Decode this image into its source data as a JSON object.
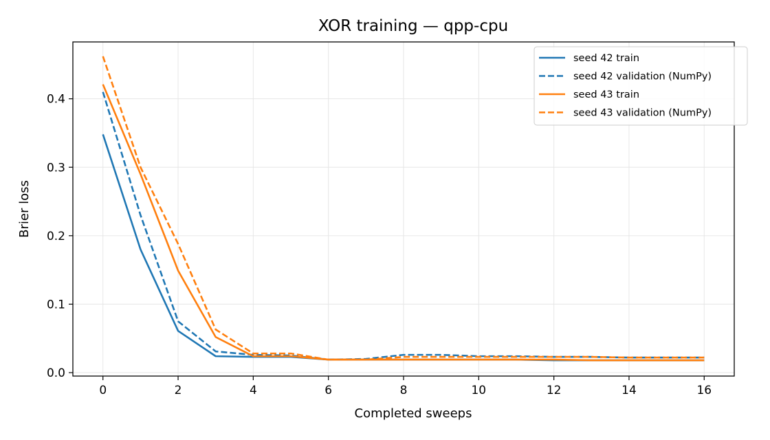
{
  "chart_data": {
    "type": "line",
    "title": "XOR training — qpp-cpu",
    "xlabel": "Completed sweeps",
    "ylabel": "Brier loss",
    "xlim": [
      -0.8,
      16.8
    ],
    "ylim": [
      -0.005,
      0.483
    ],
    "xticks": [
      0,
      2,
      4,
      6,
      8,
      10,
      12,
      14,
      16
    ],
    "yticks": [
      0.0,
      0.1,
      0.2,
      0.3,
      0.4
    ],
    "xtick_labels": [
      "0",
      "2",
      "4",
      "6",
      "8",
      "10",
      "12",
      "14",
      "16"
    ],
    "ytick_labels": [
      "0.0",
      "0.1",
      "0.2",
      "0.3",
      "0.4"
    ],
    "grid": true,
    "legend_position": "top-right",
    "x": [
      0,
      1,
      2,
      3,
      4,
      5,
      6,
      7,
      8,
      9,
      10,
      11,
      12,
      13,
      14,
      15,
      16
    ],
    "series": [
      {
        "name": "seed 42 train",
        "color": "#1f77b4",
        "dash": "solid",
        "values": [
          0.348,
          0.18,
          0.061,
          0.024,
          0.023,
          0.023,
          0.019,
          0.019,
          0.019,
          0.019,
          0.019,
          0.019,
          0.018,
          0.018,
          0.018,
          0.018,
          0.018
        ]
      },
      {
        "name": "seed 42 validation (NumPy)",
        "color": "#1f77b4",
        "dash": "dashed",
        "values": [
          0.41,
          0.23,
          0.075,
          0.031,
          0.026,
          0.025,
          0.019,
          0.02,
          0.026,
          0.026,
          0.024,
          0.024,
          0.023,
          0.023,
          0.022,
          0.022,
          0.022
        ]
      },
      {
        "name": "seed 43 train",
        "color": "#ff7f0e",
        "dash": "solid",
        "values": [
          0.421,
          0.29,
          0.149,
          0.052,
          0.024,
          0.024,
          0.019,
          0.019,
          0.019,
          0.019,
          0.019,
          0.019,
          0.019,
          0.018,
          0.018,
          0.018,
          0.018
        ]
      },
      {
        "name": "seed 43 validation (NumPy)",
        "color": "#ff7f0e",
        "dash": "dashed",
        "values": [
          0.462,
          0.3,
          0.188,
          0.063,
          0.028,
          0.028,
          0.019,
          0.019,
          0.023,
          0.023,
          0.023,
          0.023,
          0.023,
          0.023,
          0.022,
          0.022,
          0.022
        ]
      }
    ]
  }
}
